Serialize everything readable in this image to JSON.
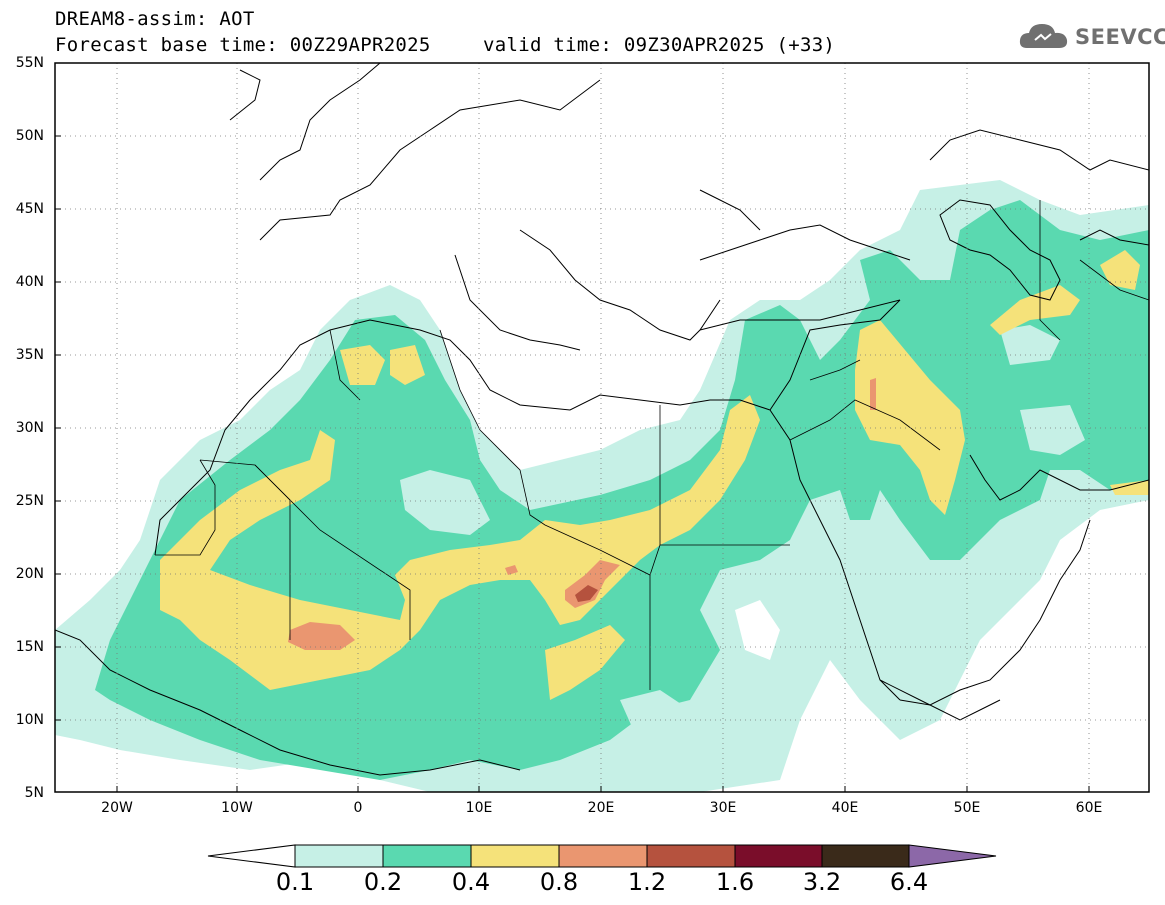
{
  "header": {
    "line1": "DREAM8-assim: AOT",
    "line2": "Forecast base time: 00Z29APR2025",
    "line3": "valid time: 09Z30APR2025 (+33)"
  },
  "logo": {
    "text": "SEEVCCC",
    "icon": "cloud-logo-icon",
    "color": "#707070"
  },
  "map": {
    "variable": "AOT",
    "lat_labels": [
      "55N",
      "50N",
      "45N",
      "40N",
      "35N",
      "30N",
      "25N",
      "20N",
      "15N",
      "10N",
      "5N"
    ],
    "lon_labels": [
      "20W",
      "10W",
      "0",
      "10E",
      "20E",
      "30E",
      "40E",
      "50E",
      "60E"
    ],
    "extent": {
      "lon_min": -25,
      "lon_max": 65,
      "lat_min": 5,
      "lat_max": 55
    }
  },
  "colorbar": {
    "labels": [
      "0.1",
      "0.2",
      "0.4",
      "0.8",
      "1.2",
      "1.6",
      "3.2",
      "6.4"
    ],
    "colors": [
      "#ffffff",
      "#c6f0e6",
      "#5ad9b0",
      "#f5e27a",
      "#ea9670",
      "#b5523e",
      "#7a0d2a",
      "#3a2a1a",
      "#8c68a8"
    ]
  }
}
